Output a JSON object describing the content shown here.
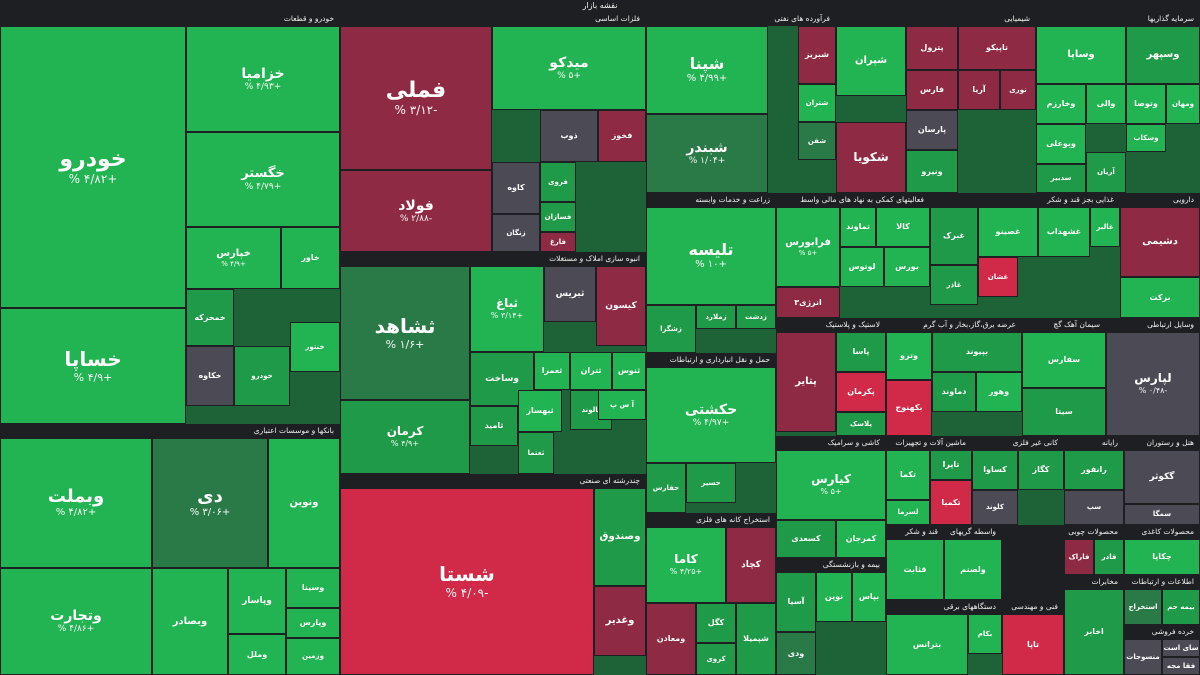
{
  "title": "نقشه بازار",
  "colors": {
    "strong_green": "#22b352",
    "green": "#1f9a48",
    "dark_green": "#2a7a48",
    "neutral": "#4b4a55",
    "dark_red": "#8e2a44",
    "red": "#d12a48",
    "background": "#1e1f22"
  },
  "sectors": [
    {
      "title": "خودرو و قطعات",
      "tiles": [
        {
          "name": "خودرو",
          "pct": "% ۴/۸۲+"
        },
        {
          "name": "خزامیا",
          "pct": "% ۴/۹۳+"
        },
        {
          "name": "خگستر",
          "pct": "% ۴/۷۹+"
        },
        {
          "name": "خساپا",
          "pct": "% ۴/۹+"
        },
        {
          "name": "خپارس",
          "pct": "% ۴/۹+"
        },
        {
          "name": "خاور",
          "pct": ""
        },
        {
          "name": "خمحرکه",
          "pct": ""
        },
        {
          "name": "خکاوه",
          "pct": ""
        },
        {
          "name": "خودرو",
          "pct": ""
        },
        {
          "name": "خنتور",
          "pct": ""
        }
      ]
    },
    {
      "title": "فلزات اساسی",
      "tiles": [
        {
          "name": "فملی",
          "pct": "% ۳/۱۲-"
        },
        {
          "name": "فولاد",
          "pct": "% ۲/۸۸-"
        },
        {
          "name": "میدکو",
          "pct": "% ۵+"
        },
        {
          "name": "فخوز",
          "pct": ""
        },
        {
          "name": "ذوب",
          "pct": ""
        },
        {
          "name": "کاوه",
          "pct": ""
        },
        {
          "name": "فروی",
          "pct": ""
        },
        {
          "name": "فسازان",
          "pct": ""
        },
        {
          "name": "زنگان",
          "pct": ""
        },
        {
          "name": "فارغ",
          "pct": ""
        }
      ]
    },
    {
      "title": "فرآورده های نفتی",
      "tiles": [
        {
          "name": "شپنا",
          "pct": "% ۴/۹۹+"
        },
        {
          "name": "شبندر",
          "pct": "% ۱/۰۴+"
        },
        {
          "name": "شبریز",
          "pct": ""
        },
        {
          "name": "شتران",
          "pct": ""
        },
        {
          "name": "شفن",
          "pct": ""
        }
      ]
    },
    {
      "title": "شیمیایی",
      "tiles": [
        {
          "name": "شپران",
          "pct": ""
        },
        {
          "name": "شکویا",
          "pct": ""
        },
        {
          "name": "پترول",
          "pct": ""
        },
        {
          "name": "تاپیکو",
          "pct": ""
        },
        {
          "name": "فارس",
          "pct": ""
        },
        {
          "name": "آریا",
          "pct": ""
        },
        {
          "name": "نوری",
          "pct": ""
        },
        {
          "name": "پارسان",
          "pct": ""
        },
        {
          "name": "ونیرو",
          "pct": ""
        }
      ]
    },
    {
      "title": "سرمایه گذاریها",
      "tiles": [
        {
          "name": "وسپهر",
          "pct": ""
        },
        {
          "name": "وساپا",
          "pct": ""
        },
        {
          "name": "وخارزم",
          "pct": ""
        },
        {
          "name": "والی",
          "pct": ""
        },
        {
          "name": "وتوصا",
          "pct": ""
        },
        {
          "name": "ومهان",
          "pct": ""
        },
        {
          "name": "وبوعلی",
          "pct": ""
        },
        {
          "name": "وسکاب",
          "pct": ""
        },
        {
          "name": "سدبیر",
          "pct": ""
        },
        {
          "name": "آریان",
          "pct": ""
        }
      ]
    },
    {
      "title": "انبوه سازی املاک و مستغلات",
      "tiles": [
        {
          "name": "ثشاهد",
          "pct": "% ۱/۶+"
        },
        {
          "name": "ثباغ",
          "pct": "% ۳/۱۴+"
        },
        {
          "name": "ثبریس",
          "pct": ""
        },
        {
          "name": "کیسون",
          "pct": ""
        },
        {
          "name": "کرمان",
          "pct": "% ۴/۹+"
        },
        {
          "name": "وساخت",
          "pct": ""
        },
        {
          "name": "ثعمرا",
          "pct": ""
        },
        {
          "name": "ثتران",
          "pct": ""
        },
        {
          "name": "ثنوس",
          "pct": ""
        },
        {
          "name": "ثامید",
          "pct": ""
        },
        {
          "name": "ثبهساز",
          "pct": ""
        },
        {
          "name": "ثعتما",
          "pct": ""
        },
        {
          "name": "ثالوند",
          "pct": ""
        },
        {
          "name": "آ س پ",
          "pct": ""
        }
      ]
    },
    {
      "title": "بانکها و موسسات اعتباری",
      "tiles": [
        {
          "name": "وبملت",
          "pct": "% ۴/۸۲+"
        },
        {
          "name": "دی",
          "pct": "% ۳/۰۶+"
        },
        {
          "name": "ونوین",
          "pct": ""
        },
        {
          "name": "وتجارت",
          "pct": "% ۴/۸۶+"
        },
        {
          "name": "وبصادر",
          "pct": ""
        },
        {
          "name": "وپاسار",
          "pct": ""
        },
        {
          "name": "وسینا",
          "pct": ""
        },
        {
          "name": "وپارس",
          "pct": ""
        },
        {
          "name": "وملل",
          "pct": ""
        },
        {
          "name": "وزمین",
          "pct": ""
        }
      ]
    },
    {
      "title": "چندرشته ای صنعتی",
      "tiles": [
        {
          "name": "شستا",
          "pct": "% ۴/۰۹-"
        },
        {
          "name": "وصندوق",
          "pct": ""
        },
        {
          "name": "وغدیر",
          "pct": ""
        }
      ]
    },
    {
      "title": "زراعت و خدمات وابسته",
      "tiles": [
        {
          "name": "تلیسه",
          "pct": "% ۱۰+"
        },
        {
          "name": "زملارد",
          "pct": ""
        },
        {
          "name": "زدشت",
          "pct": ""
        },
        {
          "name": "زشگزا",
          "pct": ""
        }
      ]
    },
    {
      "title": "فعالیتهای کمکی به نهاد های مالی واسط",
      "tiles": [
        {
          "name": "فرابورس",
          "pct": "% ۵+"
        },
        {
          "name": "تماوند",
          "pct": ""
        },
        {
          "name": "کالا",
          "pct": ""
        },
        {
          "name": "لوتوس",
          "pct": ""
        },
        {
          "name": "بورس",
          "pct": ""
        },
        {
          "name": "انرژی۳",
          "pct": ""
        }
      ]
    },
    {
      "title": "غذایی بجز قند و شکر",
      "tiles": [
        {
          "name": "غبرک",
          "pct": ""
        },
        {
          "name": "غصینو",
          "pct": ""
        },
        {
          "name": "غشهداب",
          "pct": ""
        },
        {
          "name": "غالبر",
          "pct": ""
        },
        {
          "name": "غشان",
          "pct": ""
        },
        {
          "name": "غاذر",
          "pct": ""
        }
      ]
    },
    {
      "title": "دارویی",
      "tiles": [
        {
          "name": "دشیمی",
          "pct": ""
        },
        {
          "name": "برکت",
          "pct": ""
        }
      ]
    },
    {
      "title": "حمل و نقل انبارداری و ارتباطات",
      "tiles": [
        {
          "name": "حکشتی",
          "pct": "% ۴/۹۷+"
        },
        {
          "name": "حسیر",
          "pct": ""
        },
        {
          "name": "حفارس",
          "pct": ""
        }
      ]
    },
    {
      "title": "لاستیک و پلاستیک",
      "tiles": [
        {
          "name": "پتایر",
          "pct": ""
        },
        {
          "name": "پاسا",
          "pct": ""
        },
        {
          "name": "پکرمان",
          "pct": ""
        },
        {
          "name": "پلاسک",
          "pct": ""
        }
      ]
    },
    {
      "title": "عرضه برق،گاز،بخار و آب گرم",
      "tiles": [
        {
          "name": "وترو",
          "pct": ""
        },
        {
          "name": "بکهنوج",
          "pct": ""
        },
        {
          "name": "بپیوند",
          "pct": ""
        },
        {
          "name": "دماوند",
          "pct": ""
        },
        {
          "name": "وهور",
          "pct": ""
        }
      ]
    },
    {
      "title": "سیمان آهک گچ",
      "tiles": [
        {
          "name": "سفارس",
          "pct": ""
        },
        {
          "name": "سیتا",
          "pct": ""
        },
        {
          "name": "ساوه",
          "pct": ""
        }
      ]
    },
    {
      "title": "وسایل ارتباطی",
      "tiles": [
        {
          "name": "لپارس",
          "pct": "% ۰/۴۸-"
        }
      ]
    },
    {
      "title": "کاشی و سرامیک",
      "tiles": [
        {
          "name": "کیارس",
          "pct": "% ۵+"
        },
        {
          "name": "کسعدی",
          "pct": ""
        },
        {
          "name": "کمرجان",
          "pct": ""
        }
      ]
    },
    {
      "title": "ماشین آلات و تجهیزات",
      "tiles": [
        {
          "name": "تکما",
          "pct": ""
        },
        {
          "name": "تاپرا",
          "pct": ""
        },
        {
          "name": "تکمبا",
          "pct": ""
        },
        {
          "name": "لسرما",
          "pct": ""
        }
      ]
    },
    {
      "title": "کانی غیر فلزی",
      "tiles": [
        {
          "name": "کساوا",
          "pct": ""
        },
        {
          "name": "کگاز",
          "pct": ""
        },
        {
          "name": "کلوند",
          "pct": ""
        }
      ]
    },
    {
      "title": "رایانه",
      "tiles": [
        {
          "name": "رانفور",
          "pct": ""
        },
        {
          "name": "سپ",
          "pct": ""
        }
      ]
    },
    {
      "title": "هتل و رستوران",
      "tiles": [
        {
          "name": "گکوثر",
          "pct": ""
        },
        {
          "name": "سمگا",
          "pct": ""
        }
      ]
    },
    {
      "title": "استخراج کانه های فلزی",
      "tiles": [
        {
          "name": "کاما",
          "pct": "% ۴/۲۵+"
        },
        {
          "name": "کچاد",
          "pct": ""
        },
        {
          "name": "کگل",
          "pct": ""
        },
        {
          "name": "کروی",
          "pct": ""
        },
        {
          "name": "ومعادن",
          "pct": ""
        },
        {
          "name": "شپمیلا",
          "pct": ""
        }
      ]
    },
    {
      "title": "بیمه و بازنشستگی",
      "tiles": [
        {
          "name": "آسیا",
          "pct": ""
        },
        {
          "name": "ودی",
          "pct": ""
        },
        {
          "name": "نوین",
          "pct": ""
        },
        {
          "name": "بپاس",
          "pct": ""
        }
      ]
    },
    {
      "title": "دستگاههای برقی",
      "tiles": [
        {
          "name": "بترانس",
          "pct": ""
        },
        {
          "name": "بکام",
          "pct": ""
        }
      ]
    },
    {
      "title": "قند و شکر",
      "tiles": [
        {
          "name": "قثابت",
          "pct": ""
        },
        {
          "name": "قهکمت",
          "pct": ""
        }
      ]
    },
    {
      "title": "واسطه گریهای مالی",
      "tiles": [
        {
          "name": "ولصنم",
          "pct": ""
        }
      ]
    },
    {
      "title": "محصولات کاغذی",
      "tiles": [
        {
          "name": "چکاپا",
          "pct": ""
        }
      ]
    },
    {
      "title": "محصولات چوبی",
      "tiles": [
        {
          "name": "فاراک",
          "pct": ""
        },
        {
          "name": "قادر",
          "pct": ""
        }
      ]
    },
    {
      "title": "فنی و مهندسی",
      "tiles": [
        {
          "name": "تاپا",
          "pct": ""
        }
      ]
    },
    {
      "title": "مخابرات",
      "tiles": [
        {
          "name": "اخابر",
          "pct": ""
        }
      ]
    },
    {
      "title": "اطلاعات و ارتباطات",
      "tiles": [
        {
          "name": "استخراج",
          "pct": ""
        },
        {
          "name": "بیمه حم",
          "pct": ""
        }
      ]
    },
    {
      "title": "خرده فروشی",
      "tiles": [
        {
          "name": "منسوجات",
          "pct": ""
        },
        {
          "name": "سای است",
          "pct": ""
        },
        {
          "name": "فقا مجه",
          "pct": ""
        }
      ]
    }
  ]
}
